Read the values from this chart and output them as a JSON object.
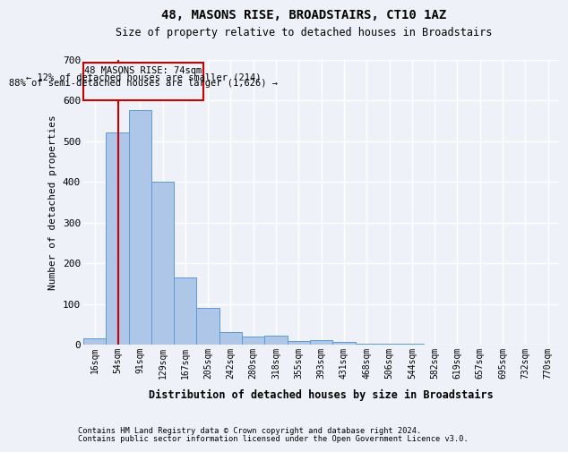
{
  "title": "48, MASONS RISE, BROADSTAIRS, CT10 1AZ",
  "subtitle": "Size of property relative to detached houses in Broadstairs",
  "xlabel": "Distribution of detached houses by size in Broadstairs",
  "ylabel": "Number of detached properties",
  "bar_labels": [
    "16sqm",
    "54sqm",
    "91sqm",
    "129sqm",
    "167sqm",
    "205sqm",
    "242sqm",
    "280sqm",
    "318sqm",
    "355sqm",
    "393sqm",
    "431sqm",
    "468sqm",
    "506sqm",
    "544sqm",
    "582sqm",
    "619sqm",
    "657sqm",
    "695sqm",
    "732sqm",
    "770sqm"
  ],
  "bar_values": [
    15,
    520,
    575,
    400,
    165,
    90,
    32,
    20,
    22,
    10,
    12,
    8,
    3,
    2,
    2,
    1,
    1,
    1,
    0,
    0,
    0
  ],
  "bar_color": "#aec6e8",
  "bar_edge_color": "#5a9bd5",
  "property_line_label": "48 MASONS RISE: 74sqm",
  "annotation_line1": "← 12% of detached houses are smaller (214)",
  "annotation_line2": "88% of semi-detached houses are larger (1,626) →",
  "vline_color": "#cc0000",
  "box_color": "#cc0000",
  "ylim": [
    0,
    700
  ],
  "yticks": [
    0,
    100,
    200,
    300,
    400,
    500,
    600,
    700
  ],
  "footer1": "Contains HM Land Registry data © Crown copyright and database right 2024.",
  "footer2": "Contains public sector information licensed under the Open Government Licence v3.0.",
  "bg_color": "#eef2f8",
  "grid_color": "#ffffff",
  "bin_width": 38
}
